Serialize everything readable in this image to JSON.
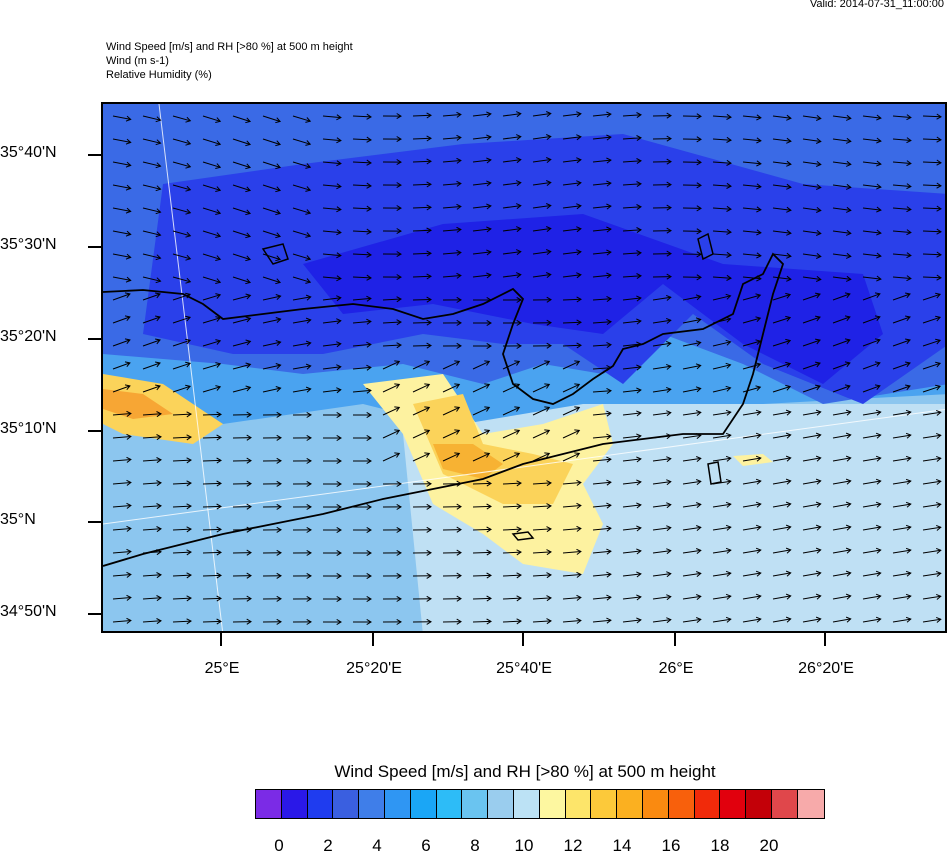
{
  "header": {
    "valid": "Valid: 2014-07-31_11:00:00",
    "line1": "Wind Speed [m/s] and RH [>80 %] at 500 m height",
    "line2": "Wind   (m s-1)",
    "line3": "Relative Humidity    (%)"
  },
  "axes": {
    "lat_labels": [
      "35°40'N",
      "35°30'N",
      "35°20'N",
      "35°10'N",
      "35°N",
      "34°50'N"
    ],
    "lon_labels": [
      "25°E",
      "25°20'E",
      "25°40'E",
      "26°E",
      "26°20'E"
    ]
  },
  "colorbar": {
    "title": "Wind Speed [m/s] and RH [>80 %] at 500 m height",
    "colors": [
      "#7b2be6",
      "#2a18e8",
      "#1f3cef",
      "#3a5fe0",
      "#3f7ee9",
      "#2f96f3",
      "#1aa6f6",
      "#2dbcf7",
      "#6ac4f0",
      "#9acdee",
      "#bce2f5",
      "#fdf7a0",
      "#fde56a",
      "#fcc93a",
      "#fbb020",
      "#fa8a10",
      "#f8600c",
      "#f12a0a",
      "#e1000d",
      "#c30008",
      "#e0474b",
      "#f7aaaa"
    ],
    "labels": [
      "0",
      "2",
      "4",
      "6",
      "8",
      "10",
      "12",
      "14",
      "16",
      "18",
      "20"
    ]
  },
  "icons": {
    "wind_vectors": "wind-arrow-icon"
  }
}
